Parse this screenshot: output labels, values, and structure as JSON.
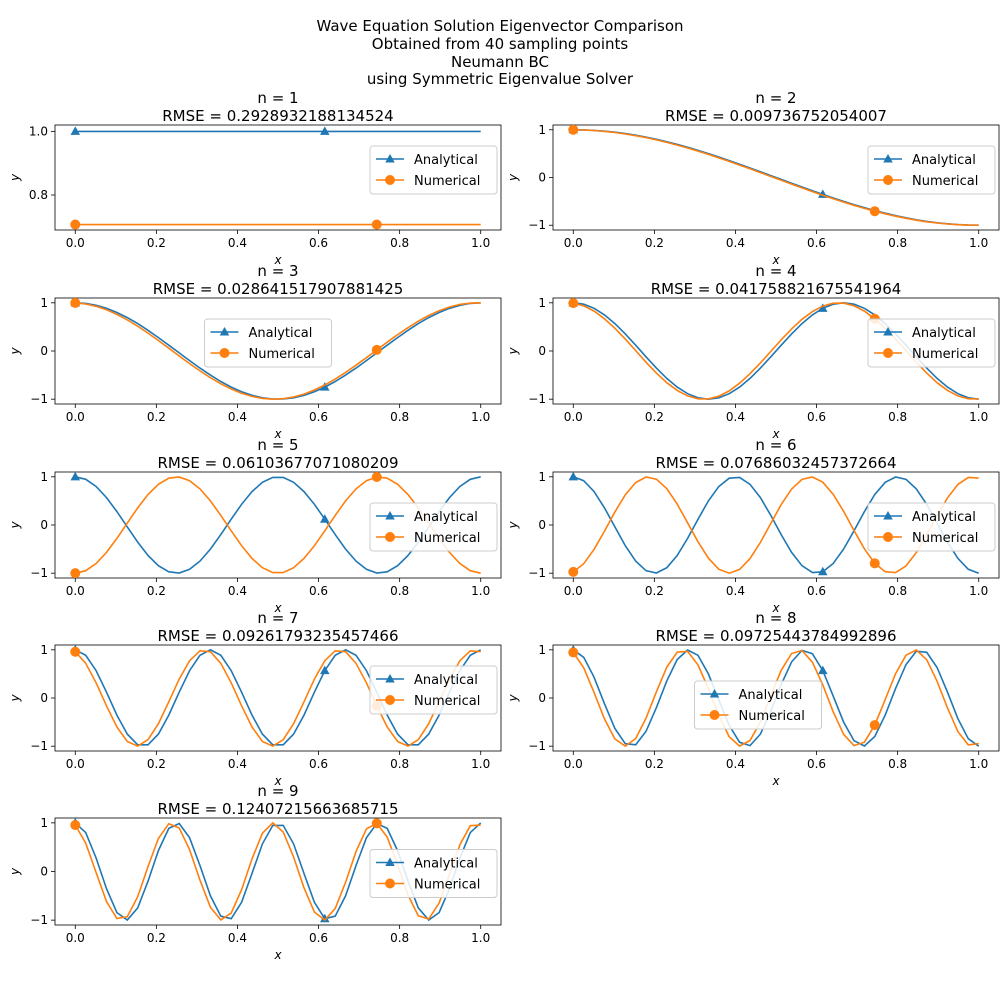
{
  "figure": {
    "title_lines": [
      "Wave Equation Solution Eigenvector Comparison",
      "Obtained from 40 sampling points",
      "Neumann BC",
      "using Symmetric Eigenvalue Solver"
    ]
  },
  "colors": {
    "analytical": "#1f77b4",
    "numerical": "#ff7f0e"
  },
  "chart_data": [
    {
      "type": "line",
      "n": 1,
      "title": "n = 1",
      "subtitle": "RMSE = 0.2928932188134524",
      "xlabel": "x",
      "ylabel": "y",
      "xlim": [
        -0.05,
        1.05
      ],
      "ylim": [
        0.69,
        1.02
      ],
      "yticks": [
        0.8,
        1.0
      ],
      "yticklabels": [
        "0.8",
        "1.0"
      ],
      "xticks": [
        0,
        0.2,
        0.4,
        0.6,
        0.8,
        1.0
      ],
      "xticklabels": [
        "0.0",
        "0.2",
        "0.4",
        "0.6",
        "0.8",
        "1.0"
      ],
      "legend_pos": "upper-right",
      "series": [
        {
          "name": "Analytical",
          "k": 0,
          "phase": 0,
          "amp": 1,
          "const": 1.0,
          "marker": "triangle"
        },
        {
          "name": "Numerical",
          "k": 0,
          "phase": 0,
          "amp": 1,
          "const": 0.7071,
          "marker": "circle"
        }
      ]
    },
    {
      "type": "line",
      "n": 2,
      "title": "n = 2",
      "subtitle": "RMSE = 0.009736752054007",
      "xlabel": "x",
      "ylabel": "y",
      "xlim": [
        -0.05,
        1.05
      ],
      "ylim": [
        -1.1,
        1.1
      ],
      "yticks": [
        -1,
        0,
        1
      ],
      "yticklabels": [
        "−1",
        "0",
        "1"
      ],
      "xticks": [
        0,
        0.2,
        0.4,
        0.6,
        0.8,
        1.0
      ],
      "xticklabels": [
        "0.0",
        "0.2",
        "0.4",
        "0.6",
        "0.8",
        "1.0"
      ],
      "legend_pos": "upper-right",
      "series": [
        {
          "name": "Analytical",
          "k": 1,
          "phase": 0,
          "amp": 1,
          "marker": "triangle"
        },
        {
          "name": "Numerical",
          "k": 1,
          "phase": 0.006,
          "amp": 1,
          "marker": "circle"
        }
      ]
    },
    {
      "type": "line",
      "n": 3,
      "title": "n = 3",
      "subtitle": "RMSE = 0.028641517907881425",
      "xlabel": "x",
      "ylabel": "y",
      "xlim": [
        -0.05,
        1.05
      ],
      "ylim": [
        -1.1,
        1.1
      ],
      "yticks": [
        -1,
        0,
        1
      ],
      "yticklabels": [
        "−1",
        "0",
        "1"
      ],
      "xticks": [
        0,
        0.2,
        0.4,
        0.6,
        0.8,
        1.0
      ],
      "xticklabels": [
        "0.0",
        "0.2",
        "0.4",
        "0.6",
        "0.8",
        "1.0"
      ],
      "legend_pos": "upper-center",
      "series": [
        {
          "name": "Analytical",
          "k": 2,
          "phase": 0,
          "amp": 1,
          "marker": "triangle"
        },
        {
          "name": "Numerical",
          "k": 2,
          "phase": 0.01,
          "amp": 1,
          "marker": "circle"
        }
      ]
    },
    {
      "type": "line",
      "n": 4,
      "title": "n = 4",
      "subtitle": "RMSE = 0.041758821675541964",
      "xlabel": "x",
      "ylabel": "y",
      "xlim": [
        -0.05,
        1.05
      ],
      "ylim": [
        -1.1,
        1.1
      ],
      "yticks": [
        -1,
        0,
        1
      ],
      "yticklabels": [
        "−1",
        "0",
        "1"
      ],
      "xticks": [
        0,
        0.2,
        0.4,
        0.6,
        0.8,
        1.0
      ],
      "xticklabels": [
        "0.0",
        "0.2",
        "0.4",
        "0.6",
        "0.8",
        "1.0"
      ],
      "legend_pos": "upper-right",
      "series": [
        {
          "name": "Analytical",
          "k": 3,
          "phase": 0,
          "amp": 1,
          "marker": "triangle"
        },
        {
          "name": "Numerical",
          "k": 3,
          "phase": 0.012,
          "amp": 1,
          "marker": "circle"
        }
      ]
    },
    {
      "type": "line",
      "n": 5,
      "title": "n = 5",
      "subtitle": "RMSE = 0.06103677071080209",
      "xlabel": "x",
      "ylabel": "y",
      "xlim": [
        -0.05,
        1.05
      ],
      "ylim": [
        -1.1,
        1.1
      ],
      "yticks": [
        -1,
        0,
        1
      ],
      "yticklabels": [
        "−1",
        "0",
        "1"
      ],
      "xticks": [
        0,
        0.2,
        0.4,
        0.6,
        0.8,
        1.0
      ],
      "xticklabels": [
        "0.0",
        "0.2",
        "0.4",
        "0.6",
        "0.8",
        "1.0"
      ],
      "legend_pos": "center-right",
      "series": [
        {
          "name": "Analytical",
          "k": 4,
          "phase": 0,
          "amp": 1,
          "marker": "triangle"
        },
        {
          "name": "Numerical",
          "k": 4,
          "phase": 0,
          "amp": -1,
          "marker": "circle"
        }
      ]
    },
    {
      "type": "line",
      "n": 6,
      "title": "n = 6",
      "subtitle": "RMSE = 0.07686032457372664",
      "xlabel": "x",
      "ylabel": "y",
      "xlim": [
        -0.05,
        1.05
      ],
      "ylim": [
        -1.1,
        1.1
      ],
      "yticks": [
        -1,
        0,
        1
      ],
      "yticklabels": [
        "−1",
        "0",
        "1"
      ],
      "xticks": [
        0,
        0.2,
        0.4,
        0.6,
        0.8,
        1.0
      ],
      "xticklabels": [
        "0.0",
        "0.2",
        "0.4",
        "0.6",
        "0.8",
        "1.0"
      ],
      "legend_pos": "center-right",
      "series": [
        {
          "name": "Analytical",
          "k": 5,
          "phase": 0,
          "amp": 1,
          "marker": "triangle"
        },
        {
          "name": "Numerical",
          "k": 5,
          "phase": 0.015,
          "amp": -1,
          "marker": "circle"
        }
      ]
    },
    {
      "type": "line",
      "n": 7,
      "title": "n = 7",
      "subtitle": "RMSE = 0.09261793235457466",
      "xlabel": "x",
      "ylabel": "y",
      "xlim": [
        -0.05,
        1.05
      ],
      "ylim": [
        -1.1,
        1.1
      ],
      "yticks": [
        -1,
        0,
        1
      ],
      "yticklabels": [
        "−1",
        "0",
        "1"
      ],
      "xticks": [
        0,
        0.2,
        0.4,
        0.6,
        0.8,
        1.0
      ],
      "xticklabels": [
        "0.0",
        "0.2",
        "0.4",
        "0.6",
        "0.8",
        "1.0"
      ],
      "legend_pos": "upper-right",
      "series": [
        {
          "name": "Analytical",
          "k": 6,
          "phase": 0,
          "amp": 1,
          "marker": "triangle"
        },
        {
          "name": "Numerical",
          "k": 6,
          "phase": 0.015,
          "amp": 1,
          "marker": "circle"
        }
      ]
    },
    {
      "type": "line",
      "n": 8,
      "title": "n = 8",
      "subtitle": "RMSE = 0.09725443784992896",
      "xlabel": "x",
      "ylabel": "y",
      "xlim": [
        -0.05,
        1.05
      ],
      "ylim": [
        -1.1,
        1.1
      ],
      "yticks": [
        -1,
        0,
        1
      ],
      "yticklabels": [
        "−1",
        "0",
        "1"
      ],
      "xticks": [
        0,
        0.2,
        0.4,
        0.6,
        0.8,
        1.0
      ],
      "xticklabels": [
        "0.0",
        "0.2",
        "0.4",
        "0.6",
        "0.8",
        "1.0"
      ],
      "legend_pos": "center",
      "series": [
        {
          "name": "Analytical",
          "k": 7,
          "phase": 0,
          "amp": 1,
          "marker": "triangle"
        },
        {
          "name": "Numerical",
          "k": 7,
          "phase": 0.015,
          "amp": 1,
          "marker": "circle"
        }
      ]
    },
    {
      "type": "line",
      "n": 9,
      "title": "n = 9",
      "subtitle": "RMSE = 0.12407215663685715",
      "xlabel": "x",
      "ylabel": "y",
      "xlim": [
        -0.05,
        1.05
      ],
      "ylim": [
        -1.1,
        1.1
      ],
      "yticks": [
        -1,
        0,
        1
      ],
      "yticklabels": [
        "−1",
        "0",
        "1"
      ],
      "xticks": [
        0,
        0.2,
        0.4,
        0.6,
        0.8,
        1.0
      ],
      "xticklabels": [
        "0.0",
        "0.2",
        "0.4",
        "0.6",
        "0.8",
        "1.0"
      ],
      "legend_pos": "center-right",
      "series": [
        {
          "name": "Analytical",
          "k": 8,
          "phase": 0,
          "amp": 1,
          "marker": "triangle"
        },
        {
          "name": "Numerical",
          "k": 8,
          "phase": 0.012,
          "amp": 1,
          "marker": "circle"
        }
      ]
    }
  ]
}
